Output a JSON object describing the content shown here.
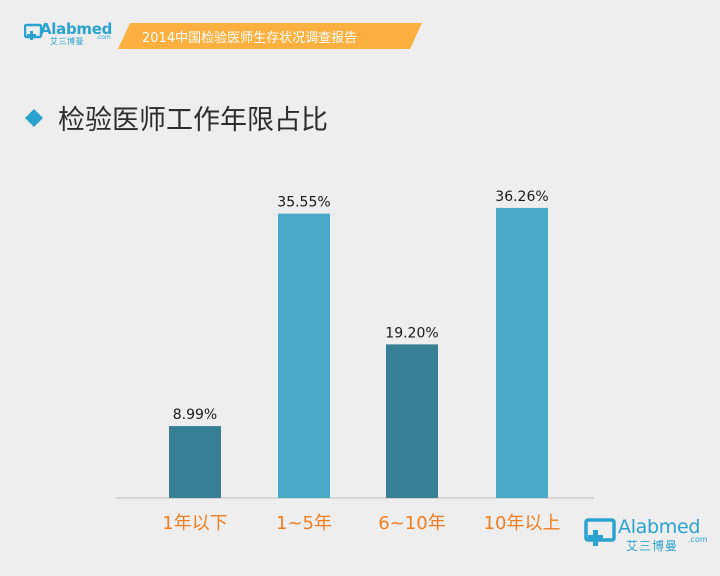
{
  "header": {
    "logo_text": "Alabmed",
    "logo_sub": "艾三博曼",
    "logo_com": ".com",
    "banner_text": "2014中国检验医师生存状况调查报告"
  },
  "slide": {
    "title": "检验医师工作年限占比"
  },
  "footer": {
    "logo_text": "Alabmed",
    "logo_sub": "艾三博曼",
    "logo_com": ".com"
  },
  "colors": {
    "dark_bar": "#377f95",
    "light_bar": "#4aabc8",
    "category_label": "#f07d1f",
    "brand": "#2aa3cf",
    "banner": "#fbb040"
  },
  "chart_data": {
    "type": "bar",
    "title": "检验医师工作年限占比",
    "categories": [
      "1年以下",
      "1~5年",
      "6~10年",
      "10年以上"
    ],
    "values": [
      8.99,
      35.55,
      19.2,
      36.26
    ],
    "data_labels": [
      "8.99%",
      "35.55%",
      "19.20%",
      "36.26%"
    ],
    "bar_colors": [
      "#377f95",
      "#4aabc8",
      "#377f95",
      "#4aabc8"
    ],
    "ylim": [
      0,
      40
    ],
    "grid": false,
    "legend": "none",
    "xlabel": "",
    "ylabel": ""
  }
}
